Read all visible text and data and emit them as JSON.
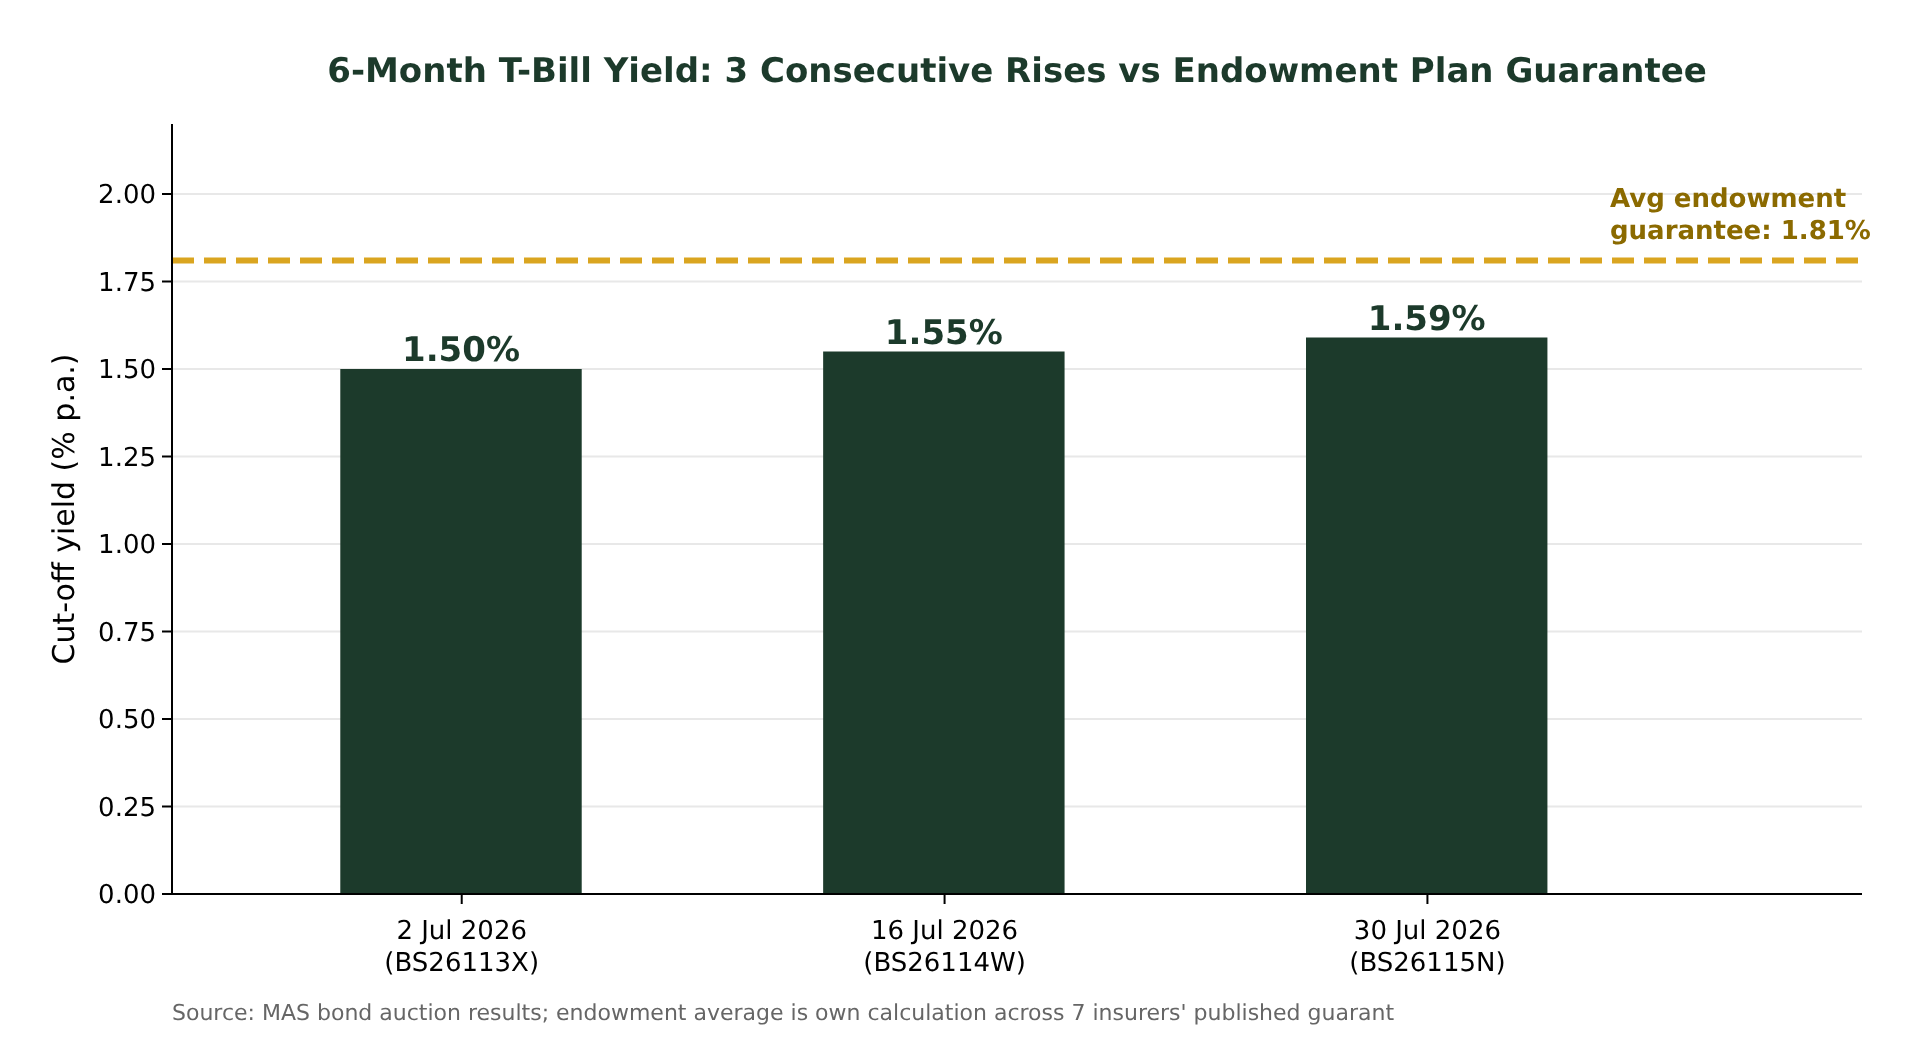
{
  "chart_data": {
    "type": "bar",
    "title": "6-Month T-Bill Yield: 3 Consecutive Rises vs Endowment Plan Guarantee",
    "ylabel": "Cut-off yield (% p.a.)",
    "categories": [
      "2 Jul 2026\n(BS26113X)",
      "16 Jul 2026\n(BS26114W)",
      "30 Jul 2026\n(BS26115N)"
    ],
    "values": [
      1.5,
      1.55,
      1.59
    ],
    "color": "#1c3a2b",
    "value_labels": [
      "1.50%",
      "1.55%",
      "1.59%"
    ],
    "ylim": [
      0,
      2.2
    ],
    "yticks": [
      {
        "value": 0,
        "label": "0.00"
      },
      {
        "value": 0.25,
        "label": "0.25"
      },
      {
        "value": 0.5,
        "label": "0.50"
      },
      {
        "value": 0.75,
        "label": "0.75"
      },
      {
        "value": 1,
        "label": "1.00"
      },
      {
        "value": 1.25,
        "label": "1.25"
      },
      {
        "value": 1.5,
        "label": "1.50"
      },
      {
        "value": 1.75,
        "label": "1.75"
      },
      {
        "value": 2,
        "label": "2.00"
      }
    ],
    "grid": "y",
    "ref_lines": [
      {
        "axis": "y",
        "value": 1.81,
        "label": "Avg endowment\nguarantee: 1.81%",
        "color": "#daa520",
        "line_style": "dashed"
      }
    ],
    "annotations": [
      "Source: MAS bond auction results; endowment average is own calculation across 7 insurers' published guarant"
    ]
  }
}
